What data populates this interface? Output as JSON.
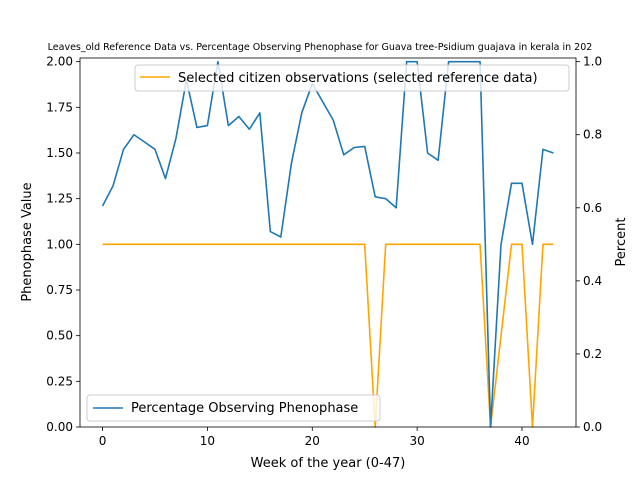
{
  "chart_data": {
    "type": "line",
    "title": "Leaves_old Reference Data vs. Percentage Observing Phenophase for Guava tree-Psidium guajava in kerala in 202",
    "xlabel": "Week of the year (0-47)",
    "ylabel_left": "Phenophase Value",
    "ylabel_right": "Percent",
    "xlim": [
      -2.15,
      45.15
    ],
    "ylim_left": [
      0,
      2.02
    ],
    "ylim_right": [
      0,
      1.01
    ],
    "xticks": [
      "0",
      "10",
      "20",
      "30",
      "40"
    ],
    "yticks_left": [
      "0.00",
      "0.25",
      "0.50",
      "0.75",
      "1.00",
      "1.25",
      "1.50",
      "1.75",
      "2.00"
    ],
    "yticks_right": [
      "0.0",
      "0.2",
      "0.4",
      "0.6",
      "0.8",
      "1.0"
    ],
    "legend_top": {
      "label": "Selected citizen observations (selected reference data)",
      "placement": "top-right"
    },
    "legend_bottom": {
      "label": "Percentage Observing Phenophase",
      "placement": "lower-left"
    },
    "series": [
      {
        "name": "Selected citizen observations (selected reference data)",
        "axis": "left",
        "color": "#ffa500",
        "x": [
          0,
          1,
          2,
          3,
          4,
          5,
          6,
          7,
          8,
          9,
          10,
          11,
          12,
          13,
          14,
          15,
          16,
          17,
          18,
          19,
          20,
          21,
          22,
          23,
          24,
          25,
          26,
          27,
          28,
          29,
          30,
          31,
          32,
          33,
          34,
          35,
          36,
          37,
          38,
          39,
          40,
          41,
          42,
          43
        ],
        "y": [
          1,
          1,
          1,
          1,
          1,
          1,
          1,
          1,
          1,
          1,
          1,
          1,
          1,
          1,
          1,
          1,
          1,
          1,
          1,
          1,
          1,
          1,
          1,
          1,
          1,
          1,
          0,
          1,
          1,
          1,
          1,
          1,
          1,
          1,
          1,
          1,
          1,
          0,
          0.5,
          1,
          1,
          0,
          1,
          1
        ]
      },
      {
        "name": "Percentage Observing Phenophase",
        "axis": "right",
        "color": "#1f77b4",
        "x": [
          0,
          1,
          2,
          3,
          4,
          5,
          6,
          7,
          8,
          9,
          10,
          11,
          12,
          13,
          14,
          15,
          16,
          17,
          18,
          19,
          20,
          21,
          22,
          23,
          24,
          25,
          26,
          27,
          28,
          29,
          30,
          31,
          32,
          33,
          34,
          35,
          36,
          37,
          38,
          39,
          40,
          41,
          42,
          43
        ],
        "y": [
          0.605,
          0.66,
          0.76,
          0.8,
          0.78,
          0.76,
          0.68,
          0.79,
          0.95,
          0.82,
          0.825,
          1.0,
          0.825,
          0.85,
          0.815,
          0.86,
          0.535,
          0.52,
          0.72,
          0.86,
          0.94,
          0.89,
          0.84,
          0.745,
          0.765,
          0.768,
          0.63,
          0.625,
          0.6,
          1.0,
          1.0,
          0.75,
          0.73,
          1.0,
          1.0,
          1.0,
          1.0,
          0.0,
          0.5,
          0.667,
          0.667,
          0.5,
          0.76,
          0.75
        ]
      }
    ]
  }
}
